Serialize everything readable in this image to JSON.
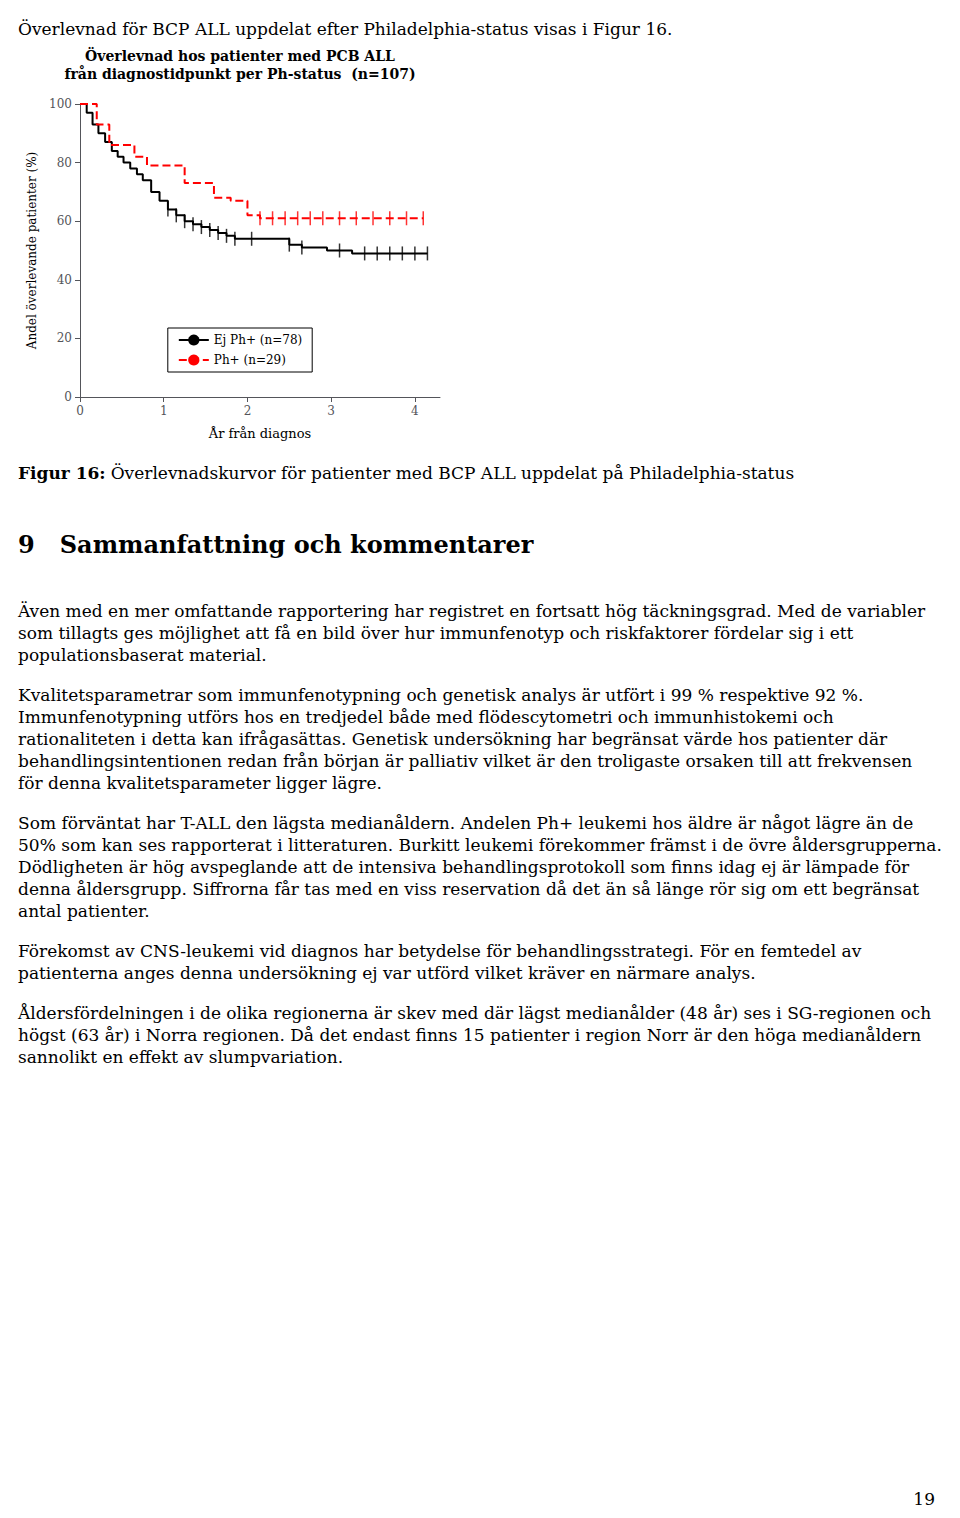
{
  "intro": "Överlevnad för BCP ALL uppdelat efter Philadelphia-status visas i Figur 16.",
  "chart_data": {
    "type": "step",
    "title": "Överlevnad hos patienter med PCB ALL",
    "subtitle": "från diagnostidpunkt per Ph-status  (n=107)",
    "x_label": "År från diagnos",
    "y_label": "Andel överlevande patienter (%)",
    "xlim": [
      0,
      4.3
    ],
    "ylim": [
      0,
      100
    ],
    "xticks": [
      0,
      1,
      2,
      3,
      4
    ],
    "yticks": [
      0,
      20,
      40,
      60,
      80,
      100
    ],
    "grid": false,
    "legend": "bottom",
    "series": [
      {
        "name": "Ej Ph+ (n=78)",
        "color": "black",
        "line_style": "solid",
        "x": [
          0.0,
          0.08,
          0.15,
          0.22,
          0.3,
          0.38,
          0.45,
          0.52,
          0.6,
          0.68,
          0.75,
          0.85,
          0.95,
          1.05,
          1.15,
          1.25,
          1.35,
          1.45,
          1.55,
          1.65,
          1.75,
          1.85,
          1.95,
          2.05,
          2.15,
          2.25,
          2.35,
          2.5,
          2.65,
          2.8,
          2.95,
          3.1,
          3.25,
          3.4,
          3.55,
          3.7,
          3.85,
          4.0,
          4.15
        ],
        "values": [
          100,
          97,
          93,
          90,
          87,
          84,
          82,
          80,
          78,
          76,
          74,
          70,
          67,
          64,
          62,
          60,
          59,
          58,
          57,
          56,
          55,
          54,
          54,
          54,
          54,
          54,
          54,
          52,
          51,
          51,
          50,
          50,
          49,
          49,
          49,
          49,
          49,
          49,
          49
        ],
        "censored": {
          "x": [
            1.05,
            1.15,
            1.25,
            1.35,
            1.45,
            1.55,
            1.65,
            1.75,
            1.85,
            2.05,
            2.5,
            2.65,
            3.1,
            3.4,
            3.55,
            3.7,
            3.85,
            4.0,
            4.15
          ],
          "y": [
            64,
            62,
            60,
            59,
            58,
            57,
            56,
            55,
            54,
            54,
            52,
            51,
            50,
            49,
            49,
            49,
            49,
            49,
            49
          ]
        }
      },
      {
        "name": "Ph+ (n=29)",
        "color": "red",
        "line_style": "dashed",
        "x": [
          0.0,
          0.1,
          0.2,
          0.35,
          0.5,
          0.65,
          0.8,
          0.95,
          1.1,
          1.25,
          1.4,
          1.6,
          1.8,
          2.0,
          2.15,
          2.3,
          2.45,
          2.6,
          2.75,
          2.9,
          3.1,
          3.3,
          3.5,
          3.7,
          3.9,
          4.1
        ],
        "values": [
          100,
          100,
          93,
          86,
          86,
          82,
          79,
          79,
          79,
          73,
          73,
          68,
          67,
          62,
          61,
          61,
          61,
          61,
          61,
          61,
          61,
          61,
          61,
          61,
          61,
          61
        ],
        "censored": {
          "x": [
            2.15,
            2.3,
            2.45,
            2.6,
            2.75,
            2.9,
            3.1,
            3.3,
            3.5,
            3.7,
            3.9,
            4.1
          ],
          "y": [
            61,
            61,
            61,
            61,
            61,
            61,
            61,
            61,
            61,
            61,
            61,
            61
          ]
        }
      }
    ]
  },
  "caption_label": "Figur 16:",
  "caption_text": "Överlevnadskurvor för patienter med BCP ALL uppdelat på Philadelphia-status",
  "heading": "9   Sammanfattning och kommentarer",
  "paragraphs": [
    "Även med en mer omfattande rapportering har registret en fortsatt hög täckningsgrad. Med de variabler som tillagts ges möjlighet att få en bild över hur immunfenotyp och riskfaktorer fördelar sig i ett populationsbaserat material.",
    "Kvalitetsparametrar som immunfenotypning och genetisk analys är utfört i 99 % respektive 92 %. Immunfenotypning utförs hos en tredjedel både med flödescytometri och immunhistokemi och rationaliteten i detta kan ifrågasättas. Genetisk undersökning har begränsat värde hos patienter där behandlingsintentionen redan från början är palliativ vilket är den troligaste orsaken till att frekvensen för denna kvalitetsparameter ligger lägre.",
    "Som förväntat har T-ALL den lägsta medianåldern. Andelen Ph+ leukemi hos äldre är något lägre än de 50% som kan ses rapporterat i litteraturen. Burkitt leukemi förekommer främst i de övre åldersgrupperna. Dödligheten är hög avspeglande att de intensiva behandlingsprotokoll som finns idag ej är lämpade för denna åldersgrupp. Siffrorna får tas med en viss reservation då det än så länge rör sig om ett begränsat antal patienter.",
    "Förekomst av CNS-leukemi vid diagnos har betydelse för behandlingsstrategi. För en femtedel av patienterna anges denna undersökning ej var utförd vilket kräver en närmare analys.",
    "Åldersfördelningen i de olika regionerna är skev med där lägst medianålder (48 år) ses i SG-regionen och högst (63 år) i Norra regionen. Då det endast finns 15 patienter i region Norr är den höga medianåldern sannolikt en effekt av slumpvariation."
  ],
  "page_number": "19"
}
